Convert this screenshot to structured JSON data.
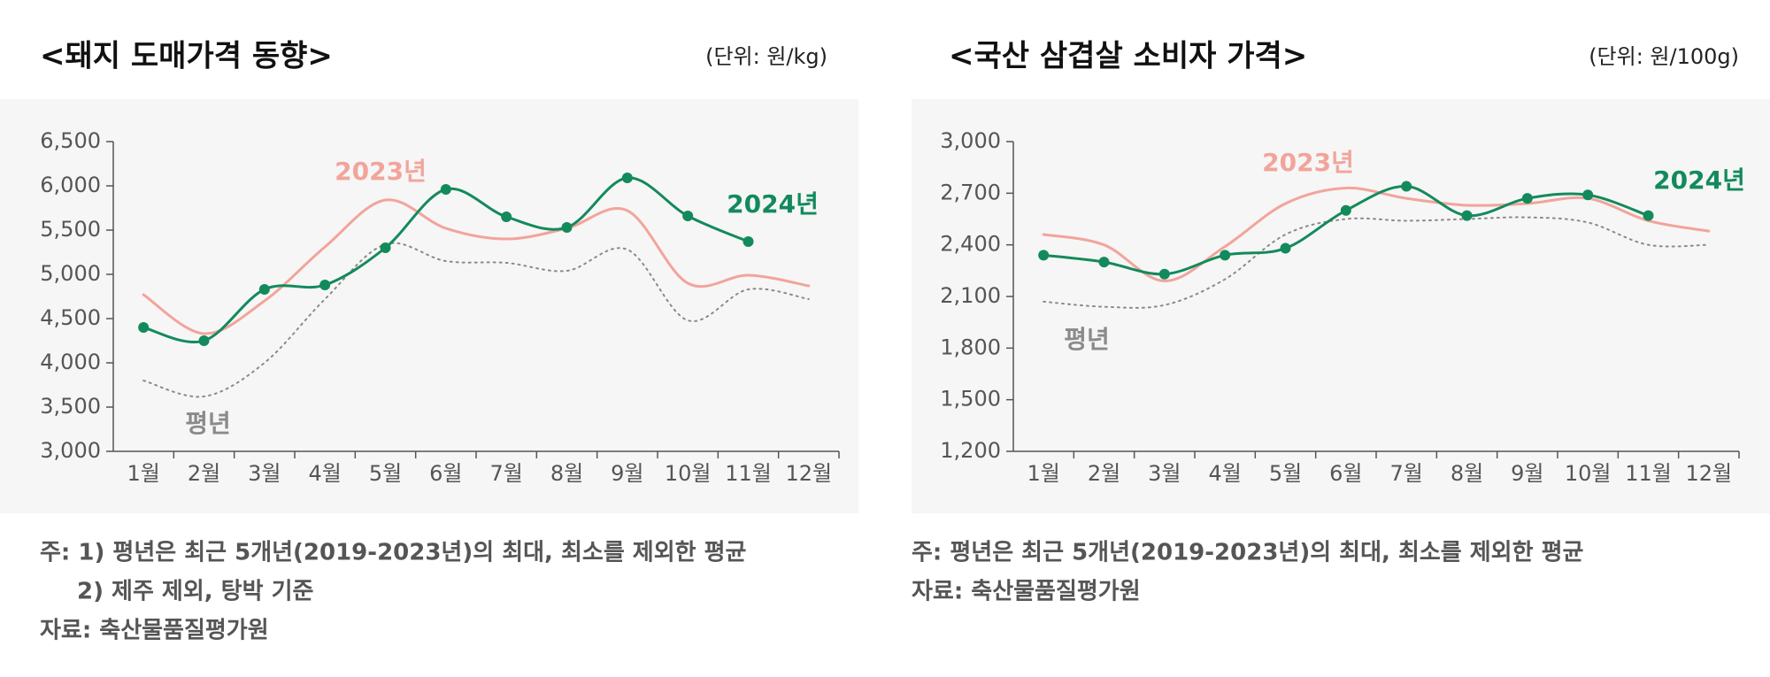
{
  "chart_data": [
    {
      "type": "line",
      "title": "<돼지 도매가격 동향>",
      "unit": "(단위: 원/kg)",
      "categories": [
        "1월",
        "2월",
        "3월",
        "4월",
        "5월",
        "6월",
        "7월",
        "8월",
        "9월",
        "10월",
        "11월",
        "12월"
      ],
      "ylim": [
        3000,
        6500
      ],
      "yticks": [
        {
          "value": 3000,
          "label": "3,000"
        },
        {
          "value": 3500,
          "label": "3,500"
        },
        {
          "value": 4000,
          "label": "4,000"
        },
        {
          "value": 4500,
          "label": "4,500"
        },
        {
          "value": 5000,
          "label": "5,000"
        },
        {
          "value": 5500,
          "label": "5,500"
        },
        {
          "value": 6000,
          "label": "6,000"
        },
        {
          "value": 6500,
          "label": "6,500"
        }
      ],
      "series": [
        {
          "name": "평년",
          "color": "#8a8a8a",
          "style": "dotted",
          "markers": false,
          "values": [
            3800,
            3620,
            4000,
            4720,
            5340,
            5150,
            5130,
            5040,
            5280,
            4480,
            4830,
            4720
          ]
        },
        {
          "name": "2023년",
          "color": "#f2a49b",
          "style": "solid",
          "markers": false,
          "values": [
            4770,
            4330,
            4700,
            5310,
            5840,
            5520,
            5400,
            5520,
            5720,
            4900,
            4990,
            4870
          ]
        },
        {
          "name": "2024년",
          "color": "#138a5c",
          "style": "solid",
          "markers": true,
          "values": [
            4400,
            4250,
            4830,
            4880,
            5300,
            5960,
            5650,
            5530,
            6090,
            5660,
            5370,
            null
          ]
        }
      ],
      "notes": [
        "주: 1) 평년은 최근 5개년(2019-2023년)의 최대, 최소를 제외한 평균",
        "2) 제주 제외, 탕박 기준",
        "자료: 축산물품질평가원"
      ]
    },
    {
      "type": "line",
      "title": "<국산 삼겹살 소비자 가격>",
      "unit": "(단위: 원/100g)",
      "categories": [
        "1월",
        "2월",
        "3월",
        "4월",
        "5월",
        "6월",
        "7월",
        "8월",
        "9월",
        "10월",
        "11월",
        "12월"
      ],
      "ylim": [
        1200,
        3000
      ],
      "yticks": [
        {
          "value": 1200,
          "label": "1,200"
        },
        {
          "value": 1500,
          "label": "1,500"
        },
        {
          "value": 1800,
          "label": "1,800"
        },
        {
          "value": 2100,
          "label": "2,100"
        },
        {
          "value": 2400,
          "label": "2,400"
        },
        {
          "value": 2700,
          "label": "2,700"
        },
        {
          "value": 3000,
          "label": "3,000"
        }
      ],
      "series": [
        {
          "name": "평년",
          "color": "#8a8a8a",
          "style": "dotted",
          "markers": false,
          "values": [
            2070,
            2040,
            2050,
            2200,
            2460,
            2550,
            2540,
            2550,
            2560,
            2530,
            2400,
            2400
          ]
        },
        {
          "name": "2023년",
          "color": "#f2a49b",
          "style": "solid",
          "markers": false,
          "values": [
            2460,
            2400,
            2190,
            2390,
            2640,
            2730,
            2670,
            2630,
            2640,
            2670,
            2540,
            2480
          ]
        },
        {
          "name": "2024년",
          "color": "#138a5c",
          "style": "solid",
          "markers": true,
          "values": [
            2340,
            2300,
            2230,
            2340,
            2380,
            2600,
            2740,
            2570,
            2670,
            2690,
            2570,
            null
          ]
        }
      ],
      "notes": [
        "주: 평년은 최근 5개년(2019-2023년)의 최대, 최소를 제외한 평균",
        "자료: 축산물품질평가원"
      ]
    }
  ]
}
